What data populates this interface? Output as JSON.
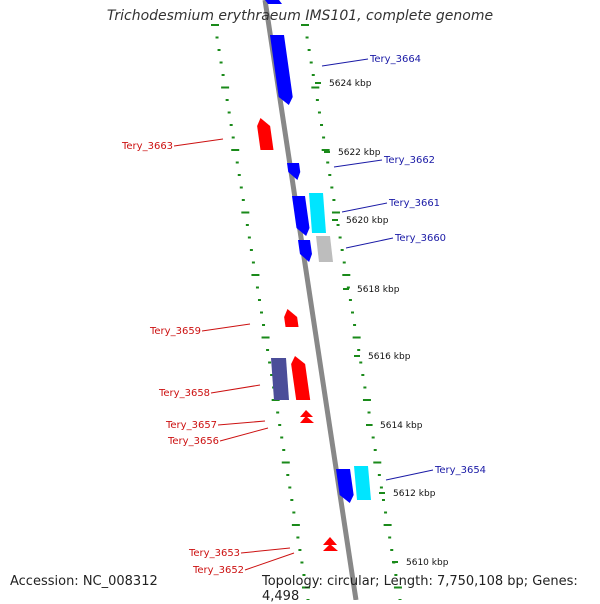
{
  "title": "Trichodesmium erythraeum IMS101, complete genome",
  "accession": "Accession: NC_008312",
  "topology_line": "Topology: circular; Length: 7,750,108 bp; Genes: 4,498",
  "colors": {
    "forward_gene": "#0000ff",
    "reverse_gene": "#ff0000",
    "cyan_gene": "#00e5ff",
    "gray_gene": "#bdbdbd",
    "slate_gene": "#4b4d99",
    "backbone": "#888888",
    "tick": "#1a8a1a",
    "forward_label": "#1a1aa6",
    "reverse_label": "#cc1111"
  },
  "ticks": [
    "5624 kbp",
    "5622 kbp",
    "5620 kbp",
    "5618 kbp",
    "5616 kbp",
    "5614 kbp",
    "5612 kbp",
    "5610 kbp"
  ],
  "forward_labels": [
    "Tery_3664",
    "Tery_3662",
    "Tery_3661",
    "Tery_3660",
    "Tery_3654"
  ],
  "reverse_labels": [
    "Tery_3663",
    "Tery_3659",
    "Tery_3658",
    "Tery_3657",
    "Tery_3656",
    "Tery_3653",
    "Tery_3652"
  ],
  "icons": {
    "forward_gene": "arrow-down-block-icon",
    "reverse_gene": "arrow-up-block-icon"
  }
}
